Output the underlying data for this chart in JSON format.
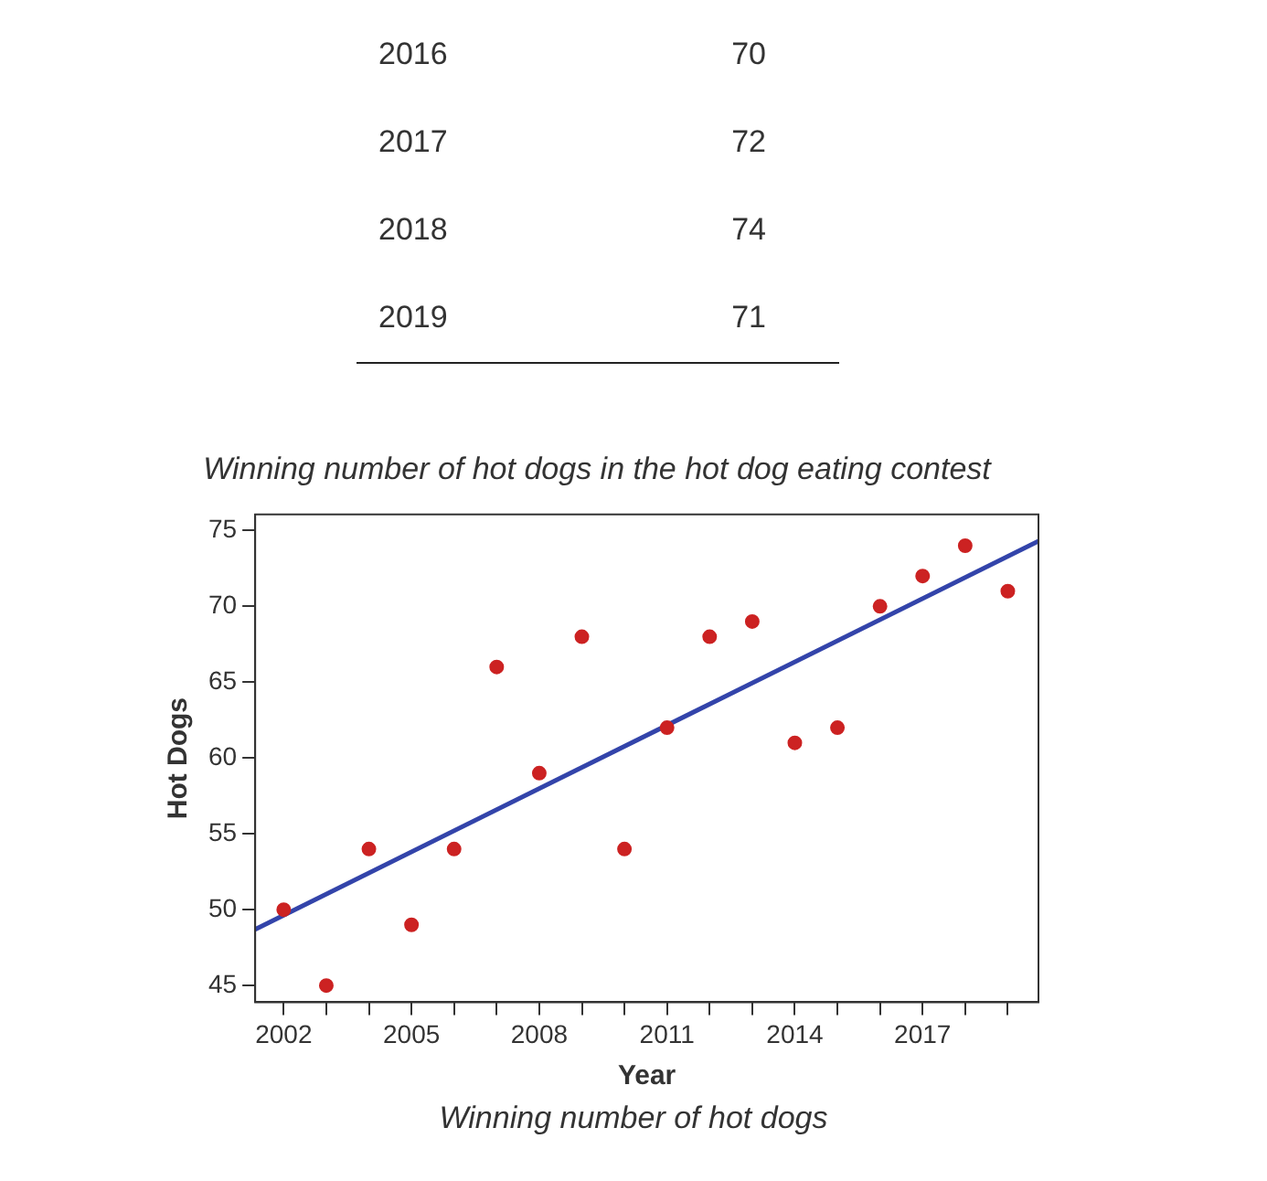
{
  "chart_data": {
    "type": "scatter",
    "title": "Winning number of hot dogs in the hot dog eating contest",
    "xlabel": "Year",
    "ylabel": "Hot Dogs",
    "x": [
      2002,
      2003,
      2004,
      2005,
      2006,
      2007,
      2008,
      2009,
      2010,
      2011,
      2012,
      2013,
      2014,
      2015,
      2016,
      2017,
      2018,
      2019
    ],
    "series": [
      {
        "color": "#cc2222",
        "marker": "circle",
        "values": [
          50,
          45,
          54,
          49,
          54,
          66,
          59,
          68,
          54,
          62,
          68,
          69,
          61,
          62,
          70,
          72,
          74,
          71
        ]
      },
      {
        "type": "line",
        "color": "#3344aa",
        "marker": "none",
        "x": [
          2001.33,
          2019.72
        ],
        "values": [
          48.7,
          74.3
        ]
      }
    ],
    "xlim": [
      2001.33,
      2019.72
    ],
    "ylim": [
      43.9,
      76.06
    ],
    "xticks": [
      2002,
      {
        "value": 2003,
        "label": null
      },
      {
        "value": 2004,
        "label": null
      },
      2005,
      {
        "value": 2006,
        "label": null
      },
      {
        "value": 2007,
        "label": null
      },
      2008,
      {
        "value": 2009,
        "label": null
      },
      {
        "value": 2010,
        "label": null
      },
      2011,
      {
        "value": 2012,
        "label": null
      },
      {
        "value": 2013,
        "label": null
      },
      2014,
      {
        "value": 2015,
        "label": null
      },
      {
        "value": 2016,
        "label": null
      },
      2017,
      {
        "value": 2018,
        "label": null
      },
      {
        "value": 2019,
        "label": null
      }
    ],
    "yticks": [
      45,
      50,
      55,
      60,
      65,
      70,
      75
    ],
    "grid": false,
    "legend": false,
    "annotations": [
      "2016",
      "70",
      "2017",
      "72",
      "2018",
      "74",
      "2019",
      "71",
      "Winning number of hot dogs"
    ]
  }
}
